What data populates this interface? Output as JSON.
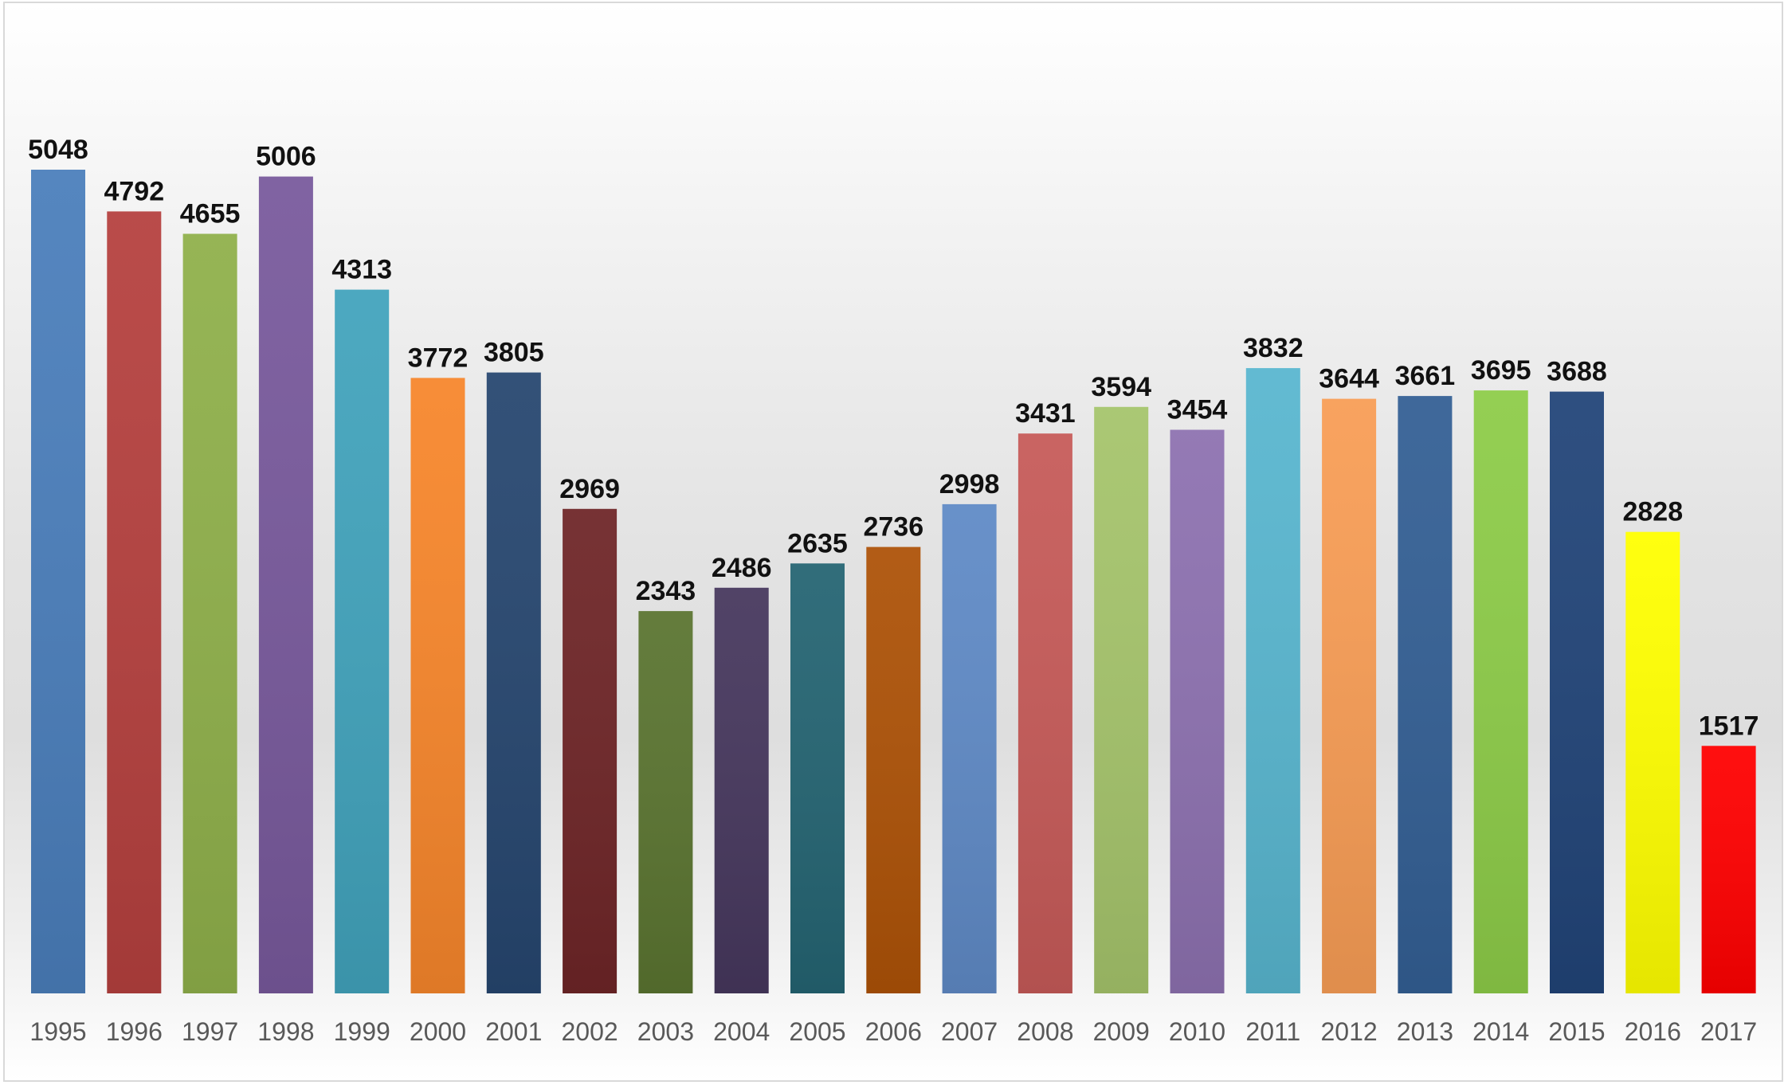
{
  "chart_data": {
    "type": "bar",
    "title": "",
    "xlabel": "",
    "ylabel": "",
    "categories": [
      "1995",
      "1996",
      "1997",
      "1998",
      "1999",
      "2000",
      "2001",
      "2002",
      "2003",
      "2004",
      "2005",
      "2006",
      "2007",
      "2008",
      "2009",
      "2010",
      "2011",
      "2012",
      "2013",
      "2014",
      "2015",
      "2016",
      "2017"
    ],
    "values": [
      5048,
      4792,
      4655,
      5006,
      4313,
      3772,
      3805,
      2969,
      2343,
      2486,
      2635,
      2736,
      2998,
      3431,
      3594,
      3454,
      3832,
      3644,
      3661,
      3695,
      3688,
      2828,
      1517
    ],
    "colors": [
      "#4a7ebb",
      "#b5403e",
      "#8fb04a",
      "#78599c",
      "#41a3bc",
      "#f7862b",
      "#26466f",
      "#6e2527",
      "#5a7430",
      "#46375d",
      "#246472",
      "#ad5207",
      "#5f8ac6",
      "#c65a58",
      "#a5c46b",
      "#8d71b0",
      "#58b6cf",
      "#f89d55",
      "#335f94",
      "#8dcc48",
      "#214478",
      "#ffff00",
      "#ff0000"
    ],
    "ylim": [
      0,
      5048
    ],
    "grid": false,
    "legend": "none",
    "data_labels": true
  }
}
